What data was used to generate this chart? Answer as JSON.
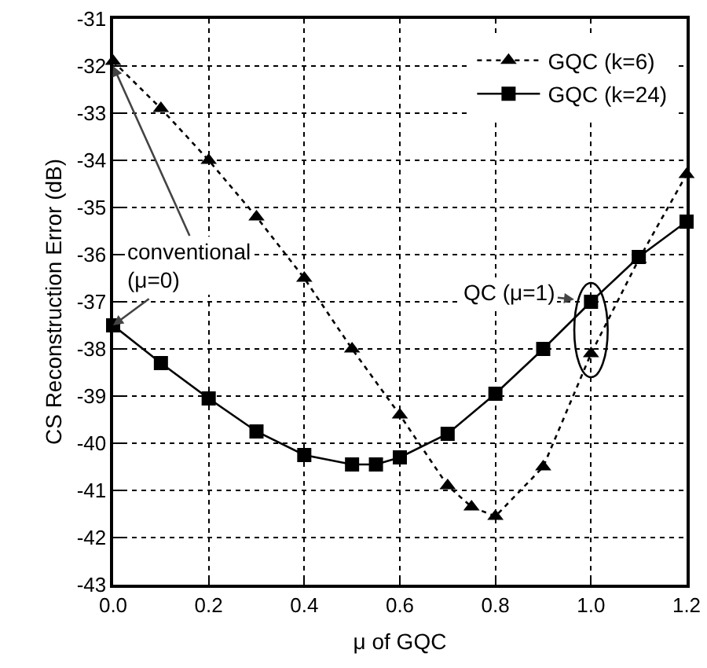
{
  "chart_data": {
    "type": "line",
    "xlabel": "μ of GQC",
    "ylabel": "CS Reconstruction Error (dB)",
    "xlim": [
      0,
      1.2
    ],
    "xticks": [
      {
        "value": 0,
        "label": "0.0"
      },
      0.2,
      0.4,
      0.6,
      0.8,
      {
        "value": 1,
        "label": "1.0"
      },
      1.2
    ],
    "ylim": [
      -43,
      -31
    ],
    "yticks": [
      -43,
      -42,
      -41,
      -40,
      -39,
      -38,
      -37,
      -36,
      -35,
      -34,
      -33,
      -32,
      -31
    ],
    "grid": true,
    "legend": "top right",
    "series": [
      {
        "name": "GQC (k=6)",
        "color": "#000000",
        "marker": "triangle",
        "line_style": "dotted",
        "x": [
          0,
          0.1,
          0.2,
          0.3,
          0.4,
          0.5,
          0.6,
          0.7,
          0.75,
          0.8,
          0.9,
          1.0,
          1.1,
          1.2
        ],
        "values": [
          -31.9,
          -32.9,
          -34.0,
          -35.2,
          -36.5,
          -38.0,
          -39.4,
          -40.9,
          -41.35,
          -41.55,
          -40.5,
          -38.1,
          -36.1,
          -34.3
        ]
      },
      {
        "name": "GQC (k=24)",
        "color": "#000000",
        "marker": "square",
        "line_style": "solid",
        "x": [
          0,
          0.1,
          0.2,
          0.3,
          0.4,
          0.5,
          0.55,
          0.6,
          0.7,
          0.8,
          0.9,
          1.0,
          1.1,
          1.2
        ],
        "values": [
          -37.5,
          -38.3,
          -39.05,
          -39.75,
          -40.25,
          -40.45,
          -40.45,
          -40.3,
          -39.8,
          -38.95,
          -38.0,
          -37.0,
          -36.05,
          -35.3
        ]
      }
    ],
    "annotations": [
      {
        "text": "conventional\n(μ=0)",
        "x": 0,
        "y": -32
      },
      {
        "text": "QC (μ=1)",
        "x": 1,
        "y": -37
      }
    ]
  }
}
